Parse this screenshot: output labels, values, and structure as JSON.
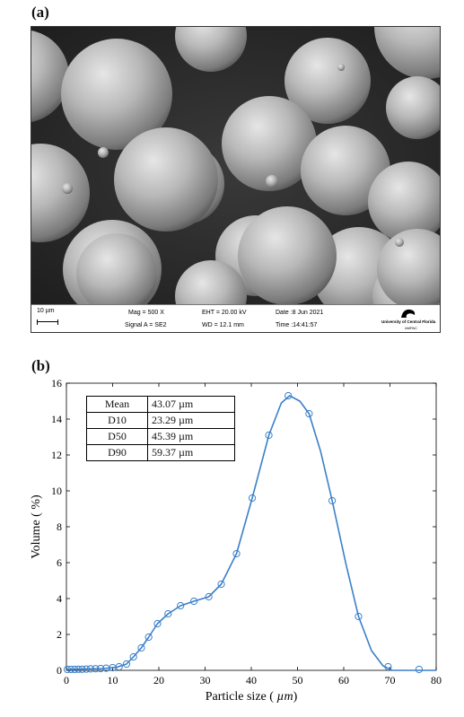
{
  "panel_a": {
    "label": "(a)",
    "info_bar": {
      "scale_bar": "10 µm",
      "mag": "Mag =   500 X",
      "eht": "EHT = 20.00 kV",
      "date": "Date :8 Jun 2021",
      "signal": "Signal A = SE2",
      "wd": "WD = 12.1 mm",
      "time": "Time :14:41:57",
      "logo_text": "University of Central Florida",
      "logo_subtext": "AMPAC"
    }
  },
  "panel_b": {
    "label": "(b)",
    "stats_table": [
      {
        "name": "Mean",
        "value": "43.07 µm"
      },
      {
        "name": "D10",
        "value": "23.29 µm"
      },
      {
        "name": "D50",
        "value": "45.39 µm"
      },
      {
        "name": "D90",
        "value": "59.37 µm"
      }
    ]
  },
  "chart_data": {
    "type": "line",
    "title": "",
    "xlabel": "Particle size (",
    "xlabel_unit": "µm",
    "xlabel_close": ")",
    "ylabel": "Volume ( %)",
    "xlim": [
      0,
      80
    ],
    "ylim": [
      0,
      16
    ],
    "xticks": [
      0,
      10,
      20,
      30,
      40,
      50,
      60,
      70,
      80
    ],
    "yticks": [
      0,
      2,
      4,
      6,
      8,
      10,
      12,
      14,
      16
    ],
    "grid": false,
    "line_color": "#3a7fc8",
    "markers": "open-circle",
    "points": [
      {
        "x": 0.2,
        "y": 0.05
      },
      {
        "x": 1.0,
        "y": 0.05
      },
      {
        "x": 1.8,
        "y": 0.05
      },
      {
        "x": 2.6,
        "y": 0.06
      },
      {
        "x": 3.4,
        "y": 0.06
      },
      {
        "x": 4.3,
        "y": 0.07
      },
      {
        "x": 5.2,
        "y": 0.08
      },
      {
        "x": 6.3,
        "y": 0.09
      },
      {
        "x": 7.4,
        "y": 0.1
      },
      {
        "x": 8.6,
        "y": 0.12
      },
      {
        "x": 10.0,
        "y": 0.15
      },
      {
        "x": 11.4,
        "y": 0.2
      },
      {
        "x": 13.0,
        "y": 0.35
      },
      {
        "x": 14.5,
        "y": 0.75
      },
      {
        "x": 16.2,
        "y": 1.25
      },
      {
        "x": 17.8,
        "y": 1.85
      },
      {
        "x": 19.7,
        "y": 2.6
      },
      {
        "x": 22.0,
        "y": 3.15
      },
      {
        "x": 24.7,
        "y": 3.6
      },
      {
        "x": 27.6,
        "y": 3.85
      },
      {
        "x": 30.8,
        "y": 4.1
      },
      {
        "x": 33.5,
        "y": 4.8
      },
      {
        "x": 36.8,
        "y": 6.5
      },
      {
        "x": 40.2,
        "y": 9.6
      },
      {
        "x": 43.8,
        "y": 13.1
      },
      {
        "x": 48.0,
        "y": 15.3
      },
      {
        "x": 52.5,
        "y": 14.3
      },
      {
        "x": 57.5,
        "y": 9.45
      },
      {
        "x": 63.2,
        "y": 3.0
      },
      {
        "x": 69.6,
        "y": 0.2
      },
      {
        "x": 76.3,
        "y": 0.05
      }
    ],
    "curve": [
      [
        0,
        0.05
      ],
      [
        8,
        0.1
      ],
      [
        11,
        0.18
      ],
      [
        13,
        0.35
      ],
      [
        14.5,
        0.75
      ],
      [
        16.2,
        1.25
      ],
      [
        17.8,
        1.85
      ],
      [
        19.7,
        2.6
      ],
      [
        22,
        3.15
      ],
      [
        24.7,
        3.6
      ],
      [
        27.6,
        3.85
      ],
      [
        30.8,
        4.1
      ],
      [
        33.5,
        4.8
      ],
      [
        36.8,
        6.5
      ],
      [
        40.2,
        9.6
      ],
      [
        43.8,
        13.1
      ],
      [
        46.5,
        14.9
      ],
      [
        48.3,
        15.3
      ],
      [
        50.5,
        15.0
      ],
      [
        52.5,
        14.3
      ],
      [
        55,
        12.2
      ],
      [
        57.5,
        9.45
      ],
      [
        60.5,
        5.9
      ],
      [
        63.2,
        3.0
      ],
      [
        66,
        1.1
      ],
      [
        68.5,
        0.25
      ],
      [
        70.5,
        0.0
      ],
      [
        73,
        0.0
      ],
      [
        80,
        0.0
      ]
    ]
  }
}
